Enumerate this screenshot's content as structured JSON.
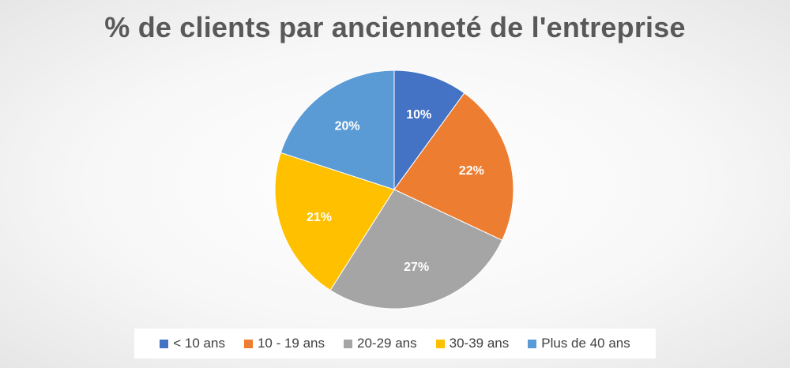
{
  "chart_data": {
    "type": "pie",
    "title": "% de clients par ancienneté de l'entreprise",
    "categories": [
      "< 10 ans",
      "10 - 19 ans",
      "20-29 ans",
      "30-39 ans",
      "Plus de 40 ans"
    ],
    "values": [
      10,
      22,
      27,
      21,
      20
    ],
    "data_labels": [
      "10%",
      "22%",
      "27%",
      "21%",
      "20%"
    ],
    "colors": [
      "#4472C4",
      "#ED7D31",
      "#A5A5A5",
      "#FFC000",
      "#5B9BD5"
    ],
    "legend_position": "bottom",
    "start": "top",
    "direction": "clockwise"
  }
}
